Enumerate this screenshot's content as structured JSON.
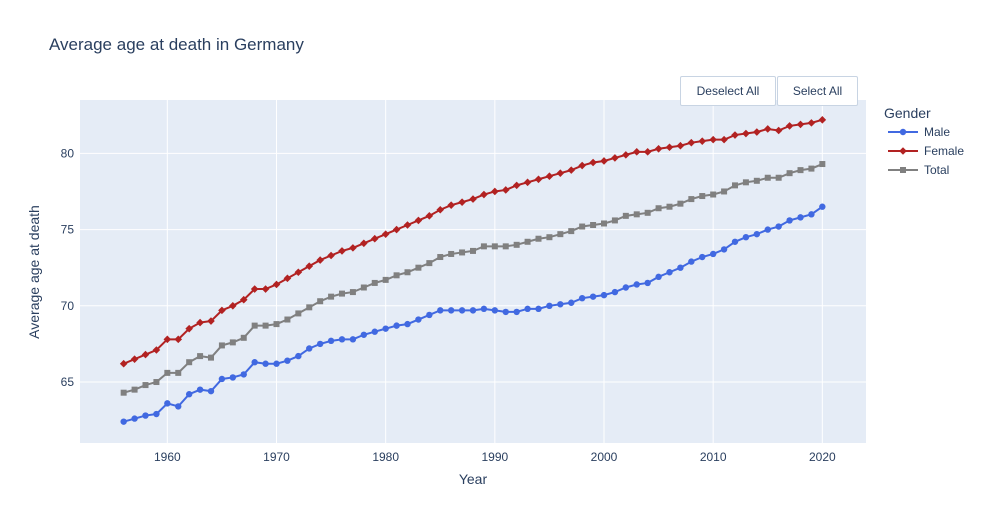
{
  "buttons": {
    "deselect_all": "Deselect All",
    "select_all": "Select All"
  },
  "chart_data": {
    "type": "line",
    "title": "Average age at death in Germany",
    "xlabel": "Year",
    "ylabel": "Average age at death",
    "xlim": [
      1952,
      2024
    ],
    "ylim": [
      61,
      83.5
    ],
    "xticks": [
      1960,
      1970,
      1980,
      1990,
      2000,
      2010,
      2020
    ],
    "yticks": [
      65,
      70,
      75,
      80
    ],
    "grid": true,
    "legend_title": "Gender",
    "legend_position": "right",
    "x": [
      1956,
      1957,
      1958,
      1959,
      1960,
      1961,
      1962,
      1963,
      1964,
      1965,
      1966,
      1967,
      1968,
      1969,
      1970,
      1971,
      1972,
      1973,
      1974,
      1975,
      1976,
      1977,
      1978,
      1979,
      1980,
      1981,
      1982,
      1983,
      1984,
      1985,
      1986,
      1987,
      1988,
      1989,
      1990,
      1991,
      1992,
      1993,
      1994,
      1995,
      1996,
      1997,
      1998,
      1999,
      2000,
      2001,
      2002,
      2003,
      2004,
      2005,
      2006,
      2007,
      2008,
      2009,
      2010,
      2011,
      2012,
      2013,
      2014,
      2015,
      2016,
      2017,
      2018,
      2019,
      2020
    ],
    "series": [
      {
        "name": "Male",
        "color": "#4169e1",
        "marker": "circle",
        "values": [
          62.4,
          62.6,
          62.8,
          62.9,
          63.6,
          63.4,
          64.2,
          64.5,
          64.4,
          65.2,
          65.3,
          65.5,
          66.3,
          66.2,
          66.2,
          66.4,
          66.7,
          67.2,
          67.5,
          67.7,
          67.8,
          67.8,
          68.1,
          68.3,
          68.5,
          68.7,
          68.8,
          69.1,
          69.4,
          69.7,
          69.7,
          69.7,
          69.7,
          69.8,
          69.7,
          69.6,
          69.6,
          69.8,
          69.8,
          70.0,
          70.1,
          70.2,
          70.5,
          70.6,
          70.7,
          70.9,
          71.2,
          71.4,
          71.5,
          71.9,
          72.2,
          72.5,
          72.9,
          73.2,
          73.4,
          73.7,
          74.2,
          74.5,
          74.7,
          75.0,
          75.2,
          75.6,
          75.8,
          76.0,
          76.5
        ]
      },
      {
        "name": "Female",
        "color": "#b22222",
        "marker": "diamond",
        "values": [
          66.2,
          66.5,
          66.8,
          67.1,
          67.8,
          67.8,
          68.5,
          68.9,
          69.0,
          69.7,
          70.0,
          70.4,
          71.1,
          71.1,
          71.4,
          71.8,
          72.2,
          72.6,
          73.0,
          73.3,
          73.6,
          73.8,
          74.1,
          74.4,
          74.7,
          75.0,
          75.3,
          75.6,
          75.9,
          76.3,
          76.6,
          76.8,
          77.0,
          77.3,
          77.5,
          77.6,
          77.9,
          78.1,
          78.3,
          78.5,
          78.7,
          78.9,
          79.2,
          79.4,
          79.5,
          79.7,
          79.9,
          80.1,
          80.1,
          80.3,
          80.4,
          80.5,
          80.7,
          80.8,
          80.9,
          80.9,
          81.2,
          81.3,
          81.4,
          81.6,
          81.5,
          81.8,
          81.9,
          82.0,
          82.2
        ]
      },
      {
        "name": "Total",
        "color": "#808080",
        "marker": "square",
        "values": [
          64.3,
          64.5,
          64.8,
          65.0,
          65.6,
          65.6,
          66.3,
          66.7,
          66.6,
          67.4,
          67.6,
          67.9,
          68.7,
          68.7,
          68.8,
          69.1,
          69.5,
          69.9,
          70.3,
          70.6,
          70.8,
          70.9,
          71.2,
          71.5,
          71.7,
          72.0,
          72.2,
          72.5,
          72.8,
          73.2,
          73.4,
          73.5,
          73.6,
          73.9,
          73.9,
          73.9,
          74.0,
          74.2,
          74.4,
          74.5,
          74.7,
          74.9,
          75.2,
          75.3,
          75.4,
          75.6,
          75.9,
          76.0,
          76.1,
          76.4,
          76.5,
          76.7,
          77.0,
          77.2,
          77.3,
          77.5,
          77.9,
          78.1,
          78.2,
          78.4,
          78.4,
          78.7,
          78.9,
          79.0,
          79.3
        ]
      }
    ]
  }
}
